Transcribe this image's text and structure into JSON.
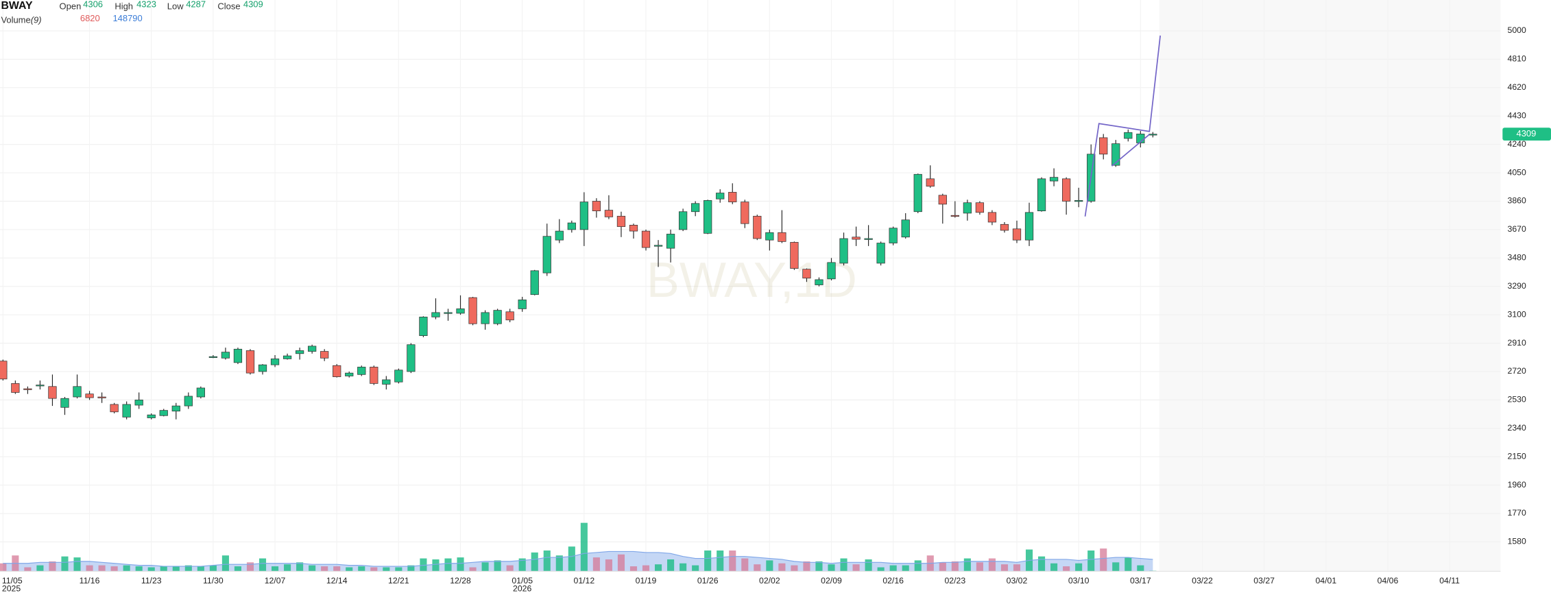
{
  "chart_data": {
    "type": "candlestick",
    "symbol": "BWAY",
    "watermark": "BWAY,1D",
    "ohlc_labels": [
      "Open",
      "High",
      "Low",
      "Close"
    ],
    "volume_title": "Volume",
    "volume_params": "(9)",
    "up_color": "#1fbf85",
    "down_color": "#ef6a5e",
    "volume_up_color": "rgba(38,190,140,0.85)",
    "volume_down_color": "rgba(214,120,150,0.75)",
    "volume_ma_color": "#7fa6e8",
    "grid": true,
    "ylim": [
      1390,
      5200
    ],
    "yticks": [
      1580,
      1770,
      1960,
      2150,
      2340,
      2530,
      2720,
      2910,
      3100,
      3290,
      3480,
      3670,
      3860,
      4050,
      4240,
      4430,
      4620,
      4810,
      5000
    ],
    "categories": [
      "11/05",
      null,
      null,
      null,
      null,
      null,
      null,
      "11/16",
      null,
      null,
      null,
      null,
      "11/23",
      null,
      null,
      null,
      null,
      "11/30",
      null,
      null,
      null,
      null,
      "12/07",
      null,
      null,
      null,
      null,
      "12/14",
      null,
      null,
      null,
      null,
      "12/21",
      null,
      null,
      null,
      null,
      "12/28",
      null,
      null,
      null,
      null,
      "01/05",
      null,
      null,
      null,
      null,
      "01/12",
      null,
      null,
      null,
      null,
      "01/19",
      null,
      null,
      null,
      null,
      "01/26",
      null,
      null,
      null,
      null,
      "02/02",
      null,
      null,
      null,
      null,
      "02/09",
      null,
      null,
      null,
      null,
      "02/16",
      null,
      null,
      null,
      null,
      "02/23",
      null,
      null,
      null,
      null,
      "03/02",
      null,
      null,
      null,
      null,
      "03/10",
      null,
      null,
      null,
      null,
      "03/17",
      null,
      null,
      null,
      null,
      "03/22",
      null,
      null,
      null,
      null,
      "03/27",
      null,
      null,
      null,
      null,
      "04/01",
      null,
      null,
      null,
      null,
      "04/06",
      null,
      null,
      null,
      null,
      "04/11",
      null,
      null,
      null,
      null
    ],
    "category_years": [
      "2025",
      null,
      null,
      null,
      null,
      null,
      null,
      null,
      null,
      null,
      null,
      null,
      null,
      null,
      null,
      null,
      null,
      null,
      null,
      null,
      null,
      null,
      null,
      null,
      null,
      null,
      null,
      null,
      null,
      null,
      null,
      null,
      null,
      null,
      null,
      null,
      null,
      null,
      null,
      null,
      null,
      null,
      "2026",
      null,
      null,
      null,
      null,
      null,
      null,
      null,
      null,
      null,
      null,
      null,
      null,
      null,
      null,
      null,
      null,
      null,
      null,
      null,
      null,
      null,
      null,
      null,
      null,
      null,
      null,
      null,
      null,
      null,
      null,
      null,
      null,
      null,
      null,
      null,
      null,
      null,
      null,
      null,
      null,
      null,
      null,
      null,
      null,
      null,
      null,
      null,
      null,
      null,
      null,
      null,
      null,
      null,
      null,
      null,
      null,
      null,
      null,
      null,
      null,
      null,
      null,
      null,
      null,
      null,
      null,
      null,
      null,
      null,
      null,
      null,
      null,
      null,
      null,
      null,
      null,
      null,
      null,
      null
    ],
    "open": [
      2790,
      2640,
      2605,
      2625,
      2620,
      2480,
      2550,
      2570,
      2550,
      2500,
      2415,
      2495,
      2410,
      2425,
      2455,
      2490,
      2550,
      2815,
      2810,
      2780,
      2860,
      2720,
      2765,
      2805,
      2840,
      2855,
      2855,
      2760,
      2690,
      2700,
      2750,
      2635,
      2650,
      2720,
      2960,
      3085,
      3110,
      3110,
      3215,
      3040,
      3040,
      3120,
      3140,
      3235,
      3380,
      3600,
      3670,
      3670,
      3860,
      3800,
      3760,
      3700,
      3660,
      3560,
      3545,
      3670,
      3790,
      3645,
      3875,
      3920,
      3855,
      3760,
      3600,
      3650,
      3585,
      3405,
      3300,
      3340,
      3445,
      3620,
      3605,
      3445,
      3580,
      3620,
      3790,
      4010,
      3900,
      3765,
      3780,
      3850,
      3785,
      3705,
      3675,
      3600,
      3795,
      3995,
      4010,
      3860,
      3860,
      4285,
      4100,
      4280,
      4250,
      4306,
      null,
      null,
      null,
      null,
      null,
      null,
      null,
      null,
      null,
      null,
      null,
      null,
      null,
      null,
      null,
      null,
      null,
      null,
      null,
      null,
      null,
      null,
      null,
      null,
      null,
      null,
      null,
      null
    ],
    "high": [
      2800,
      2660,
      2620,
      2660,
      2700,
      2550,
      2700,
      2590,
      2580,
      2510,
      2520,
      2580,
      2440,
      2470,
      2510,
      2580,
      2620,
      2830,
      2880,
      2880,
      2870,
      2770,
      2830,
      2840,
      2880,
      2900,
      2870,
      2770,
      2720,
      2760,
      2760,
      2690,
      2740,
      2910,
      3090,
      3210,
      3140,
      3230,
      3220,
      3130,
      3140,
      3140,
      3220,
      3400,
      3710,
      3740,
      3730,
      3920,
      3880,
      3900,
      3790,
      3710,
      3670,
      3600,
      3670,
      3810,
      3860,
      3870,
      3940,
      3980,
      3870,
      3770,
      3670,
      3800,
      3590,
      3410,
      3350,
      3480,
      3650,
      3690,
      3700,
      3590,
      3690,
      3780,
      4045,
      4100,
      3910,
      3860,
      3870,
      3860,
      3800,
      3720,
      3730,
      3850,
      4020,
      4080,
      4020,
      3950,
      4240,
      4310,
      4270,
      4340,
      4330,
      4323,
      null,
      null,
      null,
      null,
      null,
      null,
      null,
      null,
      null,
      null,
      null,
      null,
      null,
      null,
      null,
      null,
      null,
      null,
      null,
      null,
      null,
      null,
      null,
      null,
      null,
      null,
      null,
      null
    ],
    "low": [
      2660,
      2570,
      2570,
      2600,
      2490,
      2430,
      2540,
      2530,
      2510,
      2440,
      2400,
      2470,
      2400,
      2420,
      2400,
      2470,
      2540,
      2810,
      2800,
      2770,
      2700,
      2700,
      2750,
      2800,
      2800,
      2840,
      2790,
      2680,
      2680,
      2690,
      2630,
      2600,
      2640,
      2710,
      2950,
      3070,
      3060,
      3100,
      3030,
      3000,
      3030,
      3050,
      3120,
      3230,
      3360,
      3580,
      3650,
      3560,
      3750,
      3740,
      3620,
      3610,
      3530,
      3420,
      3450,
      3660,
      3760,
      3640,
      3850,
      3840,
      3680,
      3600,
      3530,
      3580,
      3400,
      3320,
      3290,
      3330,
      3430,
      3560,
      3560,
      3430,
      3565,
      3610,
      3780,
      3950,
      3710,
      3750,
      3730,
      3770,
      3700,
      3650,
      3580,
      3560,
      3790,
      3960,
      3770,
      3820,
      3850,
      4140,
      4090,
      4260,
      4220,
      4287,
      null,
      null,
      null,
      null,
      null,
      null,
      null,
      null,
      null,
      null,
      null,
      null,
      null,
      null,
      null,
      null,
      null,
      null,
      null,
      null,
      null,
      null,
      null,
      null,
      null,
      null,
      null,
      null
    ],
    "close": [
      2670,
      2580,
      2600,
      2630,
      2540,
      2540,
      2620,
      2545,
      2545,
      2450,
      2500,
      2530,
      2430,
      2460,
      2490,
      2555,
      2610,
      2820,
      2850,
      2870,
      2710,
      2765,
      2805,
      2825,
      2860,
      2890,
      2810,
      2685,
      2710,
      2750,
      2640,
      2665,
      2730,
      2900,
      3085,
      3115,
      3115,
      3140,
      3040,
      3115,
      3130,
      3065,
      3200,
      3395,
      3625,
      3660,
      3715,
      3855,
      3795,
      3755,
      3690,
      3660,
      3550,
      3565,
      3640,
      3790,
      3845,
      3865,
      3915,
      3855,
      3710,
      3610,
      3650,
      3590,
      3410,
      3345,
      3335,
      3450,
      3610,
      3605,
      3610,
      3580,
      3680,
      3735,
      4040,
      3960,
      3840,
      3760,
      3850,
      3785,
      3720,
      3665,
      3600,
      3785,
      4010,
      4020,
      3860,
      3865,
      4175,
      4175,
      4245,
      4320,
      4310,
      4309,
      null,
      null,
      null,
      null,
      null,
      null,
      null,
      null,
      null,
      null,
      null,
      null,
      null,
      null,
      null,
      null,
      null,
      null,
      null,
      null,
      null,
      null,
      null,
      null,
      null,
      null,
      null,
      null
    ],
    "volume": [
      99200,
      198400,
      49600,
      74400,
      124000,
      186000,
      173600,
      74400,
      74400,
      62000,
      74400,
      62000,
      49600,
      62000,
      62000,
      74400,
      62000,
      74400,
      198400,
      62000,
      111600,
      161200,
      62000,
      86800,
      111600,
      74400,
      62000,
      62000,
      49600,
      62000,
      49600,
      49600,
      49600,
      74400,
      161200,
      148800,
      161200,
      173600,
      49600,
      111600,
      136400,
      74400,
      161200,
      235600,
      260400,
      198400,
      310000,
      607600,
      173600,
      148800,
      210800,
      62000,
      74400,
      86800,
      148800,
      99200,
      74400,
      260400,
      260400,
      260400,
      161200,
      86800,
      136400,
      99200,
      74400,
      124000,
      124000,
      86800,
      161200,
      86800,
      148800,
      49600,
      74400,
      74400,
      136400,
      198400,
      111600,
      124000,
      161200,
      111600,
      161200,
      86800,
      86800,
      272800,
      186000,
      99200,
      62000,
      99200,
      260400,
      285200,
      111600,
      173600,
      74400,
      6820,
      null,
      null,
      null,
      null,
      null,
      null,
      null,
      null,
      null,
      null,
      null,
      null,
      null,
      null,
      null,
      null,
      null,
      null,
      null,
      null,
      null,
      null,
      null,
      null,
      null,
      null,
      null,
      null
    ],
    "volume_ma": [
      99200,
      99200,
      99200,
      111600,
      111600,
      111600,
      124000,
      124000,
      111600,
      99200,
      86800,
      74400,
      74400,
      62000,
      62000,
      62000,
      62000,
      74400,
      86800,
      86800,
      86800,
      99200,
      99200,
      99200,
      99200,
      86800,
      86800,
      86800,
      74400,
      74400,
      62000,
      62000,
      62000,
      62000,
      74400,
      86800,
      99200,
      99200,
      111600,
      124000,
      124000,
      124000,
      136400,
      148800,
      173600,
      173600,
      186000,
      223200,
      235600,
      248000,
      248000,
      248000,
      235600,
      235600,
      223200,
      186000,
      161200,
      161200,
      173600,
      186000,
      186000,
      173600,
      161200,
      148800,
      124000,
      111600,
      111600,
      99200,
      111600,
      111600,
      111600,
      111600,
      99200,
      99200,
      99200,
      99200,
      111600,
      111600,
      124000,
      124000,
      124000,
      124000,
      111600,
      136400,
      148800,
      148800,
      148800,
      136400,
      148800,
      161200,
      173600,
      173600,
      161200,
      148790,
      null,
      null,
      null,
      null,
      null,
      null,
      null,
      null,
      null,
      null,
      null,
      null,
      null,
      null,
      null,
      null,
      null,
      null,
      null,
      null,
      null,
      null,
      null,
      null,
      null,
      null,
      null,
      null
    ]
  }
}
